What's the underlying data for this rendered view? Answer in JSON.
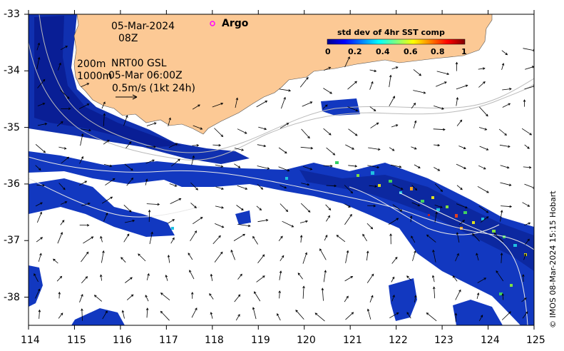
{
  "header": {
    "date": "05-Mar-2024",
    "hour": "08Z",
    "argo_label": "Argo"
  },
  "info": {
    "depth1": "200m",
    "depth2": "1000m",
    "product": "NRT00 GSL",
    "product_time": "05-Mar 06:00Z",
    "scale_text": "0.5m/s (1kt 24h)"
  },
  "colorbar": {
    "title": "std dev of 4hr SST comp",
    "ticks": [
      "0",
      "0.2",
      "0.4",
      "0.6",
      "0.8",
      "1"
    ]
  },
  "axes": {
    "x_ticks": [
      "114",
      "115",
      "116",
      "117",
      "118",
      "119",
      "120",
      "121",
      "122",
      "123",
      "124",
      "125"
    ],
    "y_ticks": [
      "-33",
      "-34",
      "-35",
      "-36",
      "-37",
      "-38"
    ]
  },
  "credit": "© IMOS 08-Mar-2024 15:15 Hobart",
  "colors": {
    "land": "#fcc995",
    "ocean_low": "#00008f",
    "ocean_high": "#800000",
    "argo_marker": "#ff00ff"
  }
}
